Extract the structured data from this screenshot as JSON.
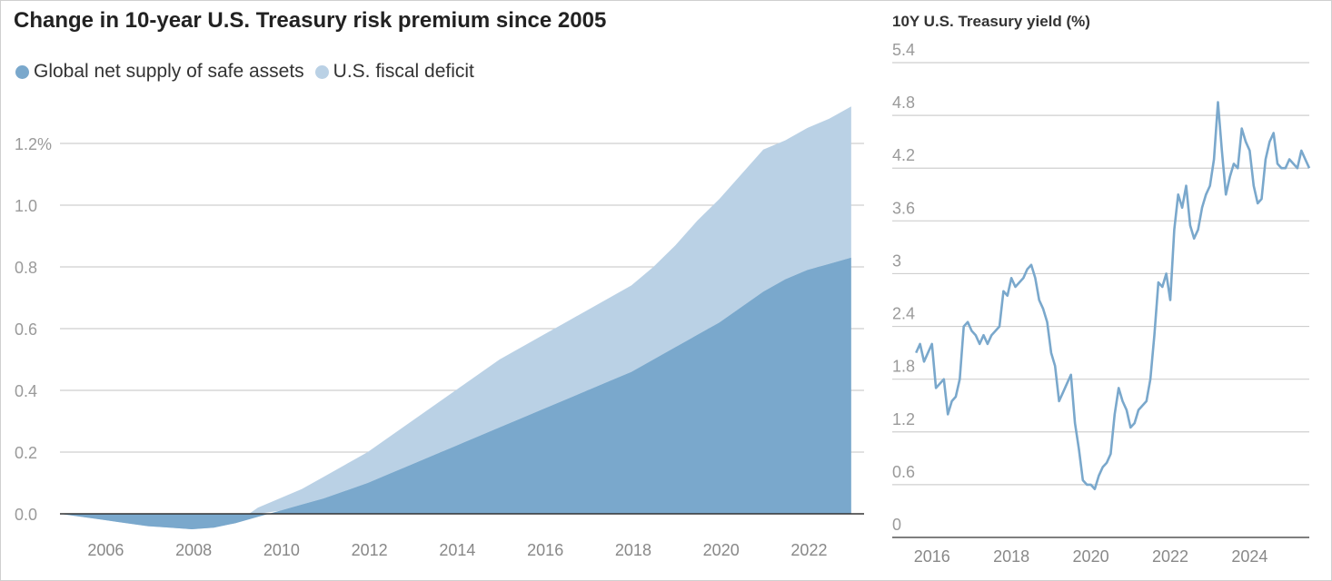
{
  "chart_data": [
    {
      "type": "area",
      "title": "Change in 10-year U.S. Treasury risk premium since 2005",
      "stacked": true,
      "y_unit": "%",
      "ylim": [
        -0.05,
        1.3
      ],
      "xlim": [
        2005,
        2023
      ],
      "y_ticks": [
        "0.0",
        "0.2",
        "0.4",
        "0.6",
        "0.8",
        "1.0",
        "1.2%"
      ],
      "y_tick_values": [
        0,
        0.2,
        0.4,
        0.6,
        0.8,
        1.0,
        1.2
      ],
      "x_ticks": [
        "2006",
        "2008",
        "2010",
        "2012",
        "2014",
        "2016",
        "2018",
        "2020",
        "2022"
      ],
      "x_tick_values": [
        2006,
        2008,
        2010,
        2012,
        2014,
        2016,
        2018,
        2020,
        2022
      ],
      "legend_position": "top-left",
      "grid": true,
      "x": [
        2005.0,
        2005.5,
        2006.0,
        2006.5,
        2007.0,
        2007.5,
        2008.0,
        2008.5,
        2009.0,
        2009.5,
        2010.0,
        2010.5,
        2011.0,
        2011.5,
        2012.0,
        2012.5,
        2013.0,
        2013.5,
        2014.0,
        2014.5,
        2015.0,
        2015.5,
        2016.0,
        2016.5,
        2017.0,
        2017.5,
        2018.0,
        2018.5,
        2019.0,
        2019.5,
        2020.0,
        2020.5,
        2021.0,
        2021.5,
        2022.0,
        2022.5,
        2023.0
      ],
      "series": [
        {
          "name": "Global net supply of safe assets",
          "color": "#7aa8cc",
          "values": [
            0.0,
            -0.01,
            -0.02,
            -0.03,
            -0.04,
            -0.045,
            -0.05,
            -0.045,
            -0.03,
            -0.01,
            0.01,
            0.03,
            0.05,
            0.075,
            0.1,
            0.13,
            0.16,
            0.19,
            0.22,
            0.25,
            0.28,
            0.31,
            0.34,
            0.37,
            0.4,
            0.43,
            0.46,
            0.5,
            0.54,
            0.58,
            0.62,
            0.67,
            0.72,
            0.76,
            0.79,
            0.81,
            0.83
          ]
        },
        {
          "name": "U.S. fiscal deficit",
          "color": "#bad1e5",
          "values": [
            0.0,
            0.0,
            0.0,
            0.0,
            0.0,
            0.0,
            0.0,
            0.0,
            0.0,
            0.03,
            0.04,
            0.05,
            0.07,
            0.085,
            0.1,
            0.12,
            0.14,
            0.16,
            0.18,
            0.2,
            0.22,
            0.23,
            0.24,
            0.25,
            0.26,
            0.27,
            0.28,
            0.3,
            0.33,
            0.37,
            0.4,
            0.43,
            0.46,
            0.45,
            0.46,
            0.47,
            0.49
          ]
        }
      ]
    },
    {
      "type": "line",
      "title": "10Y U.S. Treasury yield (%)",
      "ylim": [
        0,
        5.4
      ],
      "xlim": [
        2015.0,
        2025.5
      ],
      "y_ticks": [
        "0",
        "0.6",
        "1.2",
        "1.8",
        "2.4",
        "3",
        "3.6",
        "4.2",
        "4.8",
        "5.4"
      ],
      "y_tick_values": [
        0,
        0.6,
        1.2,
        1.8,
        2.4,
        3.0,
        3.6,
        4.2,
        4.8,
        5.4
      ],
      "x_ticks": [
        "2016",
        "2018",
        "2020",
        "2022",
        "2024"
      ],
      "x_tick_values": [
        2016,
        2018,
        2020,
        2022,
        2024
      ],
      "grid": true,
      "series": [
        {
          "color": "#7aa8cc",
          "x": [
            2015.6,
            2015.7,
            2015.8,
            2015.9,
            2016.0,
            2016.1,
            2016.2,
            2016.3,
            2016.4,
            2016.5,
            2016.6,
            2016.7,
            2016.8,
            2016.9,
            2017.0,
            2017.1,
            2017.2,
            2017.3,
            2017.4,
            2017.5,
            2017.6,
            2017.7,
            2017.8,
            2017.9,
            2018.0,
            2018.1,
            2018.2,
            2018.3,
            2018.4,
            2018.5,
            2018.6,
            2018.7,
            2018.8,
            2018.9,
            2019.0,
            2019.1,
            2019.2,
            2019.3,
            2019.4,
            2019.5,
            2019.6,
            2019.7,
            2019.8,
            2019.9,
            2020.0,
            2020.1,
            2020.2,
            2020.3,
            2020.4,
            2020.5,
            2020.6,
            2020.7,
            2020.8,
            2020.9,
            2021.0,
            2021.1,
            2021.2,
            2021.3,
            2021.4,
            2021.5,
            2021.6,
            2021.7,
            2021.8,
            2021.9,
            2022.0,
            2022.1,
            2022.2,
            2022.3,
            2022.4,
            2022.5,
            2022.6,
            2022.7,
            2022.8,
            2022.9,
            2023.0,
            2023.1,
            2023.2,
            2023.3,
            2023.4,
            2023.5,
            2023.6,
            2023.7,
            2023.8,
            2023.9,
            2024.0,
            2024.1,
            2024.2,
            2024.3,
            2024.4,
            2024.5,
            2024.6,
            2024.7,
            2024.8,
            2024.9,
            2025.0,
            2025.1,
            2025.2,
            2025.3,
            2025.4,
            2025.5
          ],
          "values": [
            2.1,
            2.2,
            2.0,
            2.1,
            2.2,
            1.7,
            1.75,
            1.8,
            1.4,
            1.55,
            1.6,
            1.8,
            2.4,
            2.45,
            2.35,
            2.3,
            2.2,
            2.3,
            2.2,
            2.3,
            2.35,
            2.4,
            2.8,
            2.75,
            2.95,
            2.85,
            2.9,
            2.95,
            3.05,
            3.1,
            2.95,
            2.7,
            2.6,
            2.45,
            2.1,
            1.95,
            1.55,
            1.65,
            1.75,
            1.85,
            1.3,
            1.0,
            0.65,
            0.6,
            0.6,
            0.55,
            0.7,
            0.8,
            0.85,
            0.95,
            1.4,
            1.7,
            1.55,
            1.45,
            1.25,
            1.3,
            1.45,
            1.5,
            1.55,
            1.8,
            2.3,
            2.9,
            2.85,
            3.0,
            2.7,
            3.5,
            3.9,
            3.75,
            4.0,
            3.55,
            3.4,
            3.5,
            3.75,
            3.9,
            4.0,
            4.3,
            4.95,
            4.4,
            3.9,
            4.1,
            4.25,
            4.2,
            4.65,
            4.5,
            4.4,
            4.0,
            3.8,
            3.85,
            4.3,
            4.5,
            4.6,
            4.25,
            4.2,
            4.2,
            4.3,
            4.25,
            4.2,
            4.4,
            4.3,
            4.2
          ]
        }
      ]
    }
  ]
}
